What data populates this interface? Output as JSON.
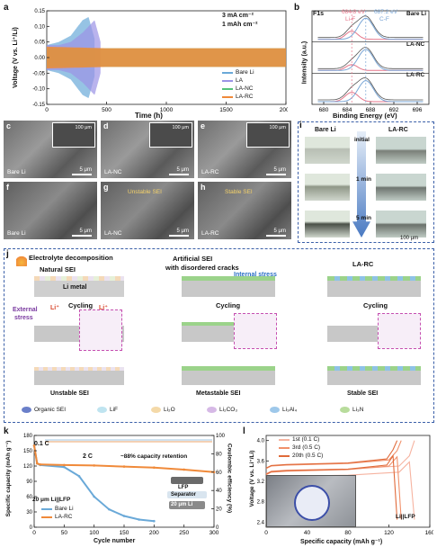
{
  "colors": {
    "bare_li": "#6aa9d8",
    "la": "#9b93e6",
    "la_nc": "#55c27a",
    "la_rc": "#f08a3a",
    "li_f": "#e6768a",
    "c_f": "#7aa6d6",
    "panel_border": "#3a5fa8"
  },
  "panel_a": {
    "letter": "a",
    "ylabel": "Voltage (V vs. Li⁺/Li)",
    "xlabel": "Time (h)",
    "xticks": [
      "0",
      "500",
      "1000",
      "1500",
      "2000"
    ],
    "yticks": [
      "0.15",
      "0.10",
      "0.05",
      "0.00",
      "-0.05",
      "-0.10",
      "-0.15"
    ],
    "annotation_1": "3 mA cm⁻²",
    "annotation_2": "1 mAh cm⁻²",
    "legend": [
      "Bare Li",
      "LA",
      "LA-NC",
      "LA-RC"
    ]
  },
  "panel_b": {
    "letter": "b",
    "title": "F1s",
    "peak_lif": "684.8 eV",
    "peak_lif_name": "Li-F",
    "peak_cf": "687.2 eV",
    "peak_cf_name": "C-F",
    "labels": [
      "Bare Li",
      "LA-NC",
      "LA-RC"
    ],
    "ylabel": "Intensity (a.u.)",
    "xlabel": "Binding Energy (eV)",
    "xticks": [
      "680",
      "684",
      "688",
      "692",
      "696"
    ]
  },
  "panels_sem": [
    {
      "letter": "c",
      "label": "Bare Li",
      "scale": "5 μm",
      "inset_scale": "100 μm"
    },
    {
      "letter": "d",
      "label": "LA-NC",
      "scale": "5 μm",
      "inset_scale": "100 μm"
    },
    {
      "letter": "e",
      "label": "LA-RC",
      "scale": "5 μm",
      "inset_scale": "100 μm"
    },
    {
      "letter": "f",
      "label": "Bare Li",
      "scale": "5 μm"
    },
    {
      "letter": "g",
      "label": "LA-NC",
      "scale": "5 μm",
      "note": "Unstable SEI"
    },
    {
      "letter": "h",
      "label": "LA-RC",
      "scale": "5 μm",
      "note": "Stable SEI"
    }
  ],
  "panel_i": {
    "letter": "i",
    "col1": "Bare Li",
    "col2": "LA-RC",
    "rows": [
      "initial",
      "1 min",
      "5 min"
    ],
    "scale": "100 μm"
  },
  "panel_j": {
    "letter": "j",
    "electrolyte": "Electrolyte decomposition",
    "natural": "Natural SEI",
    "artificial_1": "Artificial SEI",
    "artificial_2": "with disordered cracks",
    "internal_stress": "Internal stress",
    "la_rc": "LA-RC",
    "li_metal": "Li metal",
    "external_1": "External",
    "external_2": "stress",
    "li_plus": "Li⁺",
    "cycling": "Cycling",
    "bottom": [
      "Unstable SEI",
      "Metastable SEI",
      "Stable SEI"
    ],
    "legend": [
      "Organic SEI",
      "LiF",
      "Li₂O",
      "Li₂CO₃",
      "Li₃Al₄",
      "Li₃N"
    ]
  },
  "panel_k": {
    "letter": "k",
    "rate_1": "0.1 C",
    "rate_2": "2 C",
    "retention": "~88% capacity retention",
    "ylabel_left": "Specific capacity (mAh g⁻¹)",
    "ylabel_right": "Coulombic efficiency (%)",
    "xlabel": "Cycle number",
    "xticks": [
      "0",
      "50",
      "100",
      "150",
      "200",
      "250",
      "300"
    ],
    "yticks_left": [
      "180",
      "150",
      "120",
      "90",
      "60",
      "30",
      "0"
    ],
    "yticks_right": [
      "100",
      "80",
      "60",
      "40",
      "20",
      "0"
    ],
    "cell": "20 μm Li||LFP",
    "legend": [
      "Bare Li",
      "LA-RC"
    ],
    "schematic": [
      "LFP",
      "Separator",
      "20 μm Li"
    ]
  },
  "panel_l": {
    "letter": "l",
    "ylabel": "Voltage (V vs. Li⁺/Li)",
    "xlabel": "Specific capacity (mAh g⁻¹)",
    "xticks": [
      "0",
      "40",
      "80",
      "120",
      "160"
    ],
    "yticks": [
      "4.0",
      "3.6",
      "3.2",
      "2.8",
      "2.4"
    ],
    "legend": [
      "1st (0.1 C)",
      "3rd (0.5 C)",
      "20th (0.5 C)"
    ],
    "cell": "Li||LFP"
  },
  "chart_data": [
    {
      "type": "line",
      "title": "",
      "xlabel": "Time (h)",
      "ylabel": "Voltage (V vs. Li⁺/Li)",
      "xlim": [
        0,
        2000
      ],
      "ylim": [
        -0.15,
        0.15
      ],
      "series": [
        {
          "name": "Bare Li",
          "x": [
            0,
            100,
            200,
            300,
            350,
            400
          ],
          "y_amplitude": [
            0.04,
            0.05,
            0.07,
            0.12,
            0.13,
            0.06
          ]
        },
        {
          "name": "LA",
          "x": [
            0,
            100,
            200,
            300,
            400,
            450
          ],
          "y_amplitude": [
            0.04,
            0.04,
            0.05,
            0.08,
            0.12,
            0.05
          ]
        },
        {
          "name": "LA-NC",
          "x": [
            0,
            500,
            1000,
            1500,
            2000
          ],
          "y_amplitude": [
            0.03,
            0.03,
            0.03,
            0.03,
            0.03
          ]
        },
        {
          "name": "LA-RC",
          "x": [
            0,
            500,
            1000,
            1500,
            2000
          ],
          "y_amplitude": [
            0.035,
            0.03,
            0.03,
            0.03,
            0.03
          ]
        }
      ]
    },
    {
      "type": "line",
      "title": "F1s",
      "xlabel": "Binding Energy (eV)",
      "ylabel": "Intensity (a.u.)",
      "xlim": [
        678,
        698
      ],
      "series": [
        {
          "name": "Bare Li",
          "peaks_eV": [
            684.8,
            687.2
          ]
        },
        {
          "name": "LA-NC",
          "peaks_eV": [
            684.8,
            687.2
          ]
        },
        {
          "name": "LA-RC",
          "peaks_eV": [
            684.8,
            687.2
          ]
        }
      ]
    },
    {
      "type": "line",
      "title": "",
      "xlabel": "Cycle number",
      "ylabel": "Specific capacity (mAh g⁻¹)",
      "xlim": [
        0,
        300
      ],
      "ylim": [
        0,
        180
      ],
      "series": [
        {
          "name": "Bare Li",
          "x": [
            0,
            5,
            10,
            50,
            75,
            100,
            125,
            150,
            175,
            200
          ],
          "y": [
            160,
            125,
            122,
            118,
            100,
            60,
            35,
            22,
            15,
            12
          ]
        },
        {
          "name": "LA-RC",
          "x": [
            0,
            5,
            10,
            50,
            100,
            150,
            200,
            250,
            300
          ],
          "y": [
            160,
            125,
            123,
            122,
            121,
            119,
            117,
            113,
            108
          ]
        }
      ]
    },
    {
      "type": "line",
      "title": "",
      "xlabel": "Specific capacity (mAh g⁻¹)",
      "ylabel": "Voltage (V vs. Li⁺/Li)",
      "xlim": [
        0,
        160
      ],
      "ylim": [
        2.3,
        4.1
      ],
      "series": [
        {
          "name": "1st (0.1 C)",
          "x": [
            0,
            5,
            20,
            80,
            130,
            140,
            145
          ],
          "y": [
            3.35,
            3.4,
            3.42,
            3.44,
            3.5,
            3.7,
            4.0
          ]
        },
        {
          "name": "3rd (0.5 C)",
          "x": [
            0,
            5,
            20,
            80,
            120,
            128,
            132
          ],
          "y": [
            3.45,
            3.5,
            3.52,
            3.55,
            3.62,
            3.8,
            4.0
          ]
        },
        {
          "name": "20th (0.5 C)",
          "x": [
            0,
            5,
            20,
            80,
            118,
            124,
            128
          ],
          "y": [
            3.46,
            3.51,
            3.53,
            3.56,
            3.64,
            3.82,
            4.0
          ]
        }
      ]
    }
  ]
}
